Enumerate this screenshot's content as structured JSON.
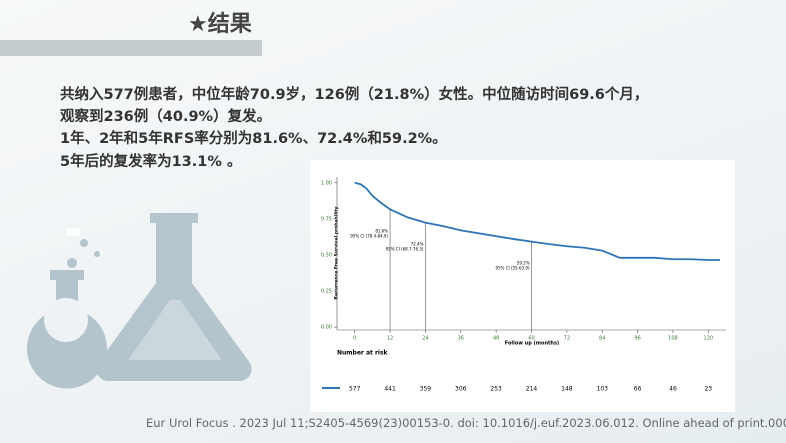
{
  "header": {
    "title": "★结果"
  },
  "body": {
    "lines": [
      "共纳入577例患者，中位年龄70.9岁，126例（21.8%）女性。中位随访时间69.6个月，",
      "观察到236例（40.9%）复发。",
      "1年、2年和5年RFS率分别为81.6%、72.4%和59.2%。",
      "5年后的复发率为13.1% 。"
    ]
  },
  "citation": "Eur Urol Focus . 2023 Jul 11;S2405-4569(23)00153-0. doi: 10.1016/j.euf.2023.06.012. Online ahead of print.000",
  "chart_data": {
    "type": "line",
    "y_label": "Recurrence Free Survival probability",
    "x_label": "Follow up (months)",
    "x": [
      0,
      2,
      4,
      6,
      9,
      12,
      18,
      24,
      30,
      36,
      42,
      48,
      54,
      60,
      66,
      72,
      78,
      84,
      90,
      96,
      102,
      108,
      114,
      120,
      124
    ],
    "series": [
      {
        "color": "#2e75b6",
        "values": [
          1.0,
          0.99,
          0.96,
          0.91,
          0.86,
          0.816,
          0.76,
          0.724,
          0.7,
          0.67,
          0.65,
          0.63,
          0.61,
          0.592,
          0.575,
          0.56,
          0.55,
          0.53,
          0.48,
          0.48,
          0.48,
          0.47,
          0.47,
          0.465,
          0.465
        ]
      }
    ],
    "xlim": [
      -6,
      126
    ],
    "xticks": [
      0,
      12,
      24,
      36,
      48,
      60,
      72,
      84,
      96,
      108,
      120
    ],
    "ylim": [
      -0.02,
      1.04
    ],
    "yticks": [
      {
        "value": 0,
        "label": "0.00"
      },
      {
        "value": 0.25,
        "label": "0.25"
      },
      {
        "value": 0.5,
        "label": "0.50"
      },
      {
        "value": 0.75,
        "label": "0.75"
      },
      {
        "value": 1,
        "label": "1.00"
      }
    ],
    "annotations": [
      {
        "x": 12,
        "y": 0.816,
        "label": "81.6%",
        "ci": "95% CI (78.4-84.9)"
      },
      {
        "x": 24,
        "y": 0.724,
        "label": "72.4%",
        "ci": "95% CI (68.7-76.3)"
      },
      {
        "x": 60,
        "y": 0.592,
        "label": "59.2%",
        "ci": "95% CI (55-63.9)"
      }
    ],
    "risk_table": {
      "title": "Number at risk",
      "values": [
        577,
        441,
        359,
        306,
        253,
        214,
        148,
        103,
        66,
        46,
        23
      ]
    }
  }
}
